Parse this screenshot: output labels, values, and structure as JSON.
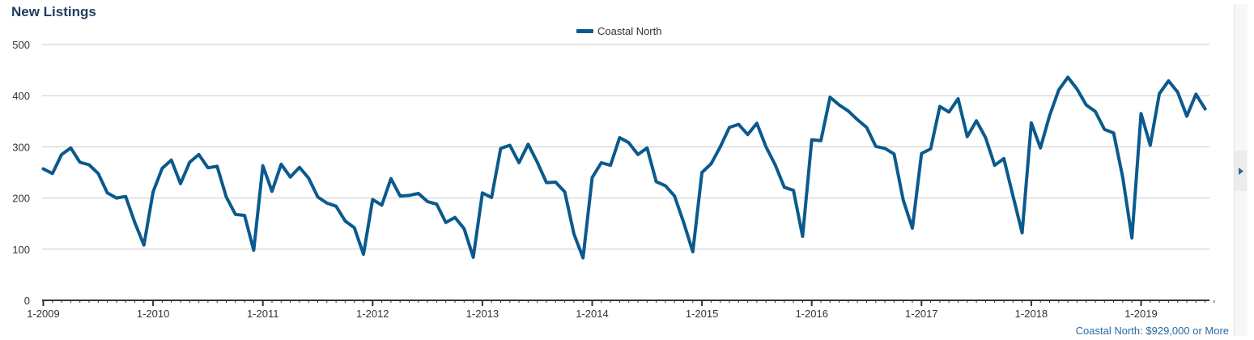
{
  "chart_title": "New Listings",
  "footer_note": "Coastal North: $929,000 or More",
  "side_toggle_icon": "triangle-right-icon",
  "colors": {
    "series": "#0b5a8e",
    "grid": "#cccccc",
    "axis": "#333333",
    "title": "#1f3d5c"
  },
  "chart_data": {
    "type": "line",
    "title": "New Listings",
    "xlabel": "",
    "ylabel": "",
    "ylim": [
      0,
      500
    ],
    "yticks": [
      0,
      100,
      200,
      300,
      400,
      500
    ],
    "xtick_labels": [
      "1-2009",
      "1-2010",
      "1-2011",
      "1-2012",
      "1-2013",
      "1-2014",
      "1-2015",
      "1-2016",
      "1-2017",
      "1-2018",
      "1-2019"
    ],
    "start": "1-2009",
    "frequency": "monthly",
    "grid": true,
    "legend_position": "top-center",
    "series": [
      {
        "name": "Coastal North",
        "values": [
          257,
          248,
          285,
          298,
          270,
          265,
          248,
          210,
          200,
          203,
          152,
          108,
          212,
          258,
          274,
          228,
          270,
          285,
          259,
          262,
          202,
          168,
          166,
          98,
          263,
          213,
          266,
          241,
          260,
          239,
          202,
          190,
          184,
          155,
          142,
          90,
          197,
          186,
          238,
          204,
          205,
          209,
          193,
          188,
          152,
          162,
          140,
          84,
          210,
          201,
          297,
          303,
          269,
          305,
          270,
          230,
          231,
          212,
          130,
          83,
          240,
          269,
          264,
          318,
          308,
          285,
          298,
          232,
          224,
          204,
          152,
          95,
          250,
          267,
          300,
          338,
          344,
          324,
          346,
          300,
          265,
          221,
          215,
          125,
          314,
          312,
          397,
          382,
          370,
          353,
          338,
          301,
          297,
          286,
          196,
          141,
          287,
          296,
          379,
          368,
          394,
          320,
          351,
          318,
          264,
          277,
          204,
          132,
          347,
          298,
          361,
          411,
          436,
          413,
          382,
          369,
          334,
          327,
          240,
          122,
          365,
          303,
          404,
          429,
          407,
          360,
          403,
          374
        ]
      }
    ]
  }
}
